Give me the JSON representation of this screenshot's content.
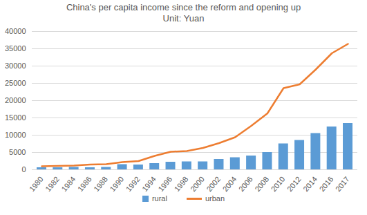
{
  "chart_data": {
    "type": "bar",
    "title": "China's per capita income since the reform and opening up",
    "subtitle": "Unit: Yuan",
    "categories": [
      "1980",
      "1982",
      "1984",
      "1986",
      "1988",
      "1990",
      "1992",
      "1994",
      "1996",
      "1998",
      "2000",
      "2002",
      "2004",
      "2006",
      "2008",
      "2010",
      "2012",
      "2014",
      "2016",
      "2017"
    ],
    "series": [
      {
        "name": "rural",
        "type": "bar",
        "color": "#5b9bd5",
        "values": [
          600,
          600,
          700,
          600,
          700,
          1500,
          1400,
          1800,
          2200,
          2300,
          2300,
          3000,
          3500,
          4000,
          5000,
          7500,
          8500,
          10500,
          12400,
          13400
        ]
      },
      {
        "name": "urban",
        "type": "line",
        "color": "#ed7d31",
        "values": [
          1000,
          1100,
          1200,
          1500,
          1600,
          2200,
          2500,
          4000,
          5200,
          5400,
          6300,
          7700,
          9400,
          12700,
          16300,
          23600,
          24700,
          29000,
          33700,
          36400
        ]
      }
    ],
    "ylim": [
      0,
      40000
    ],
    "yticks": [
      0,
      5000,
      10000,
      15000,
      20000,
      25000,
      30000,
      35000,
      40000
    ],
    "grid": true,
    "legend": "bottom"
  }
}
